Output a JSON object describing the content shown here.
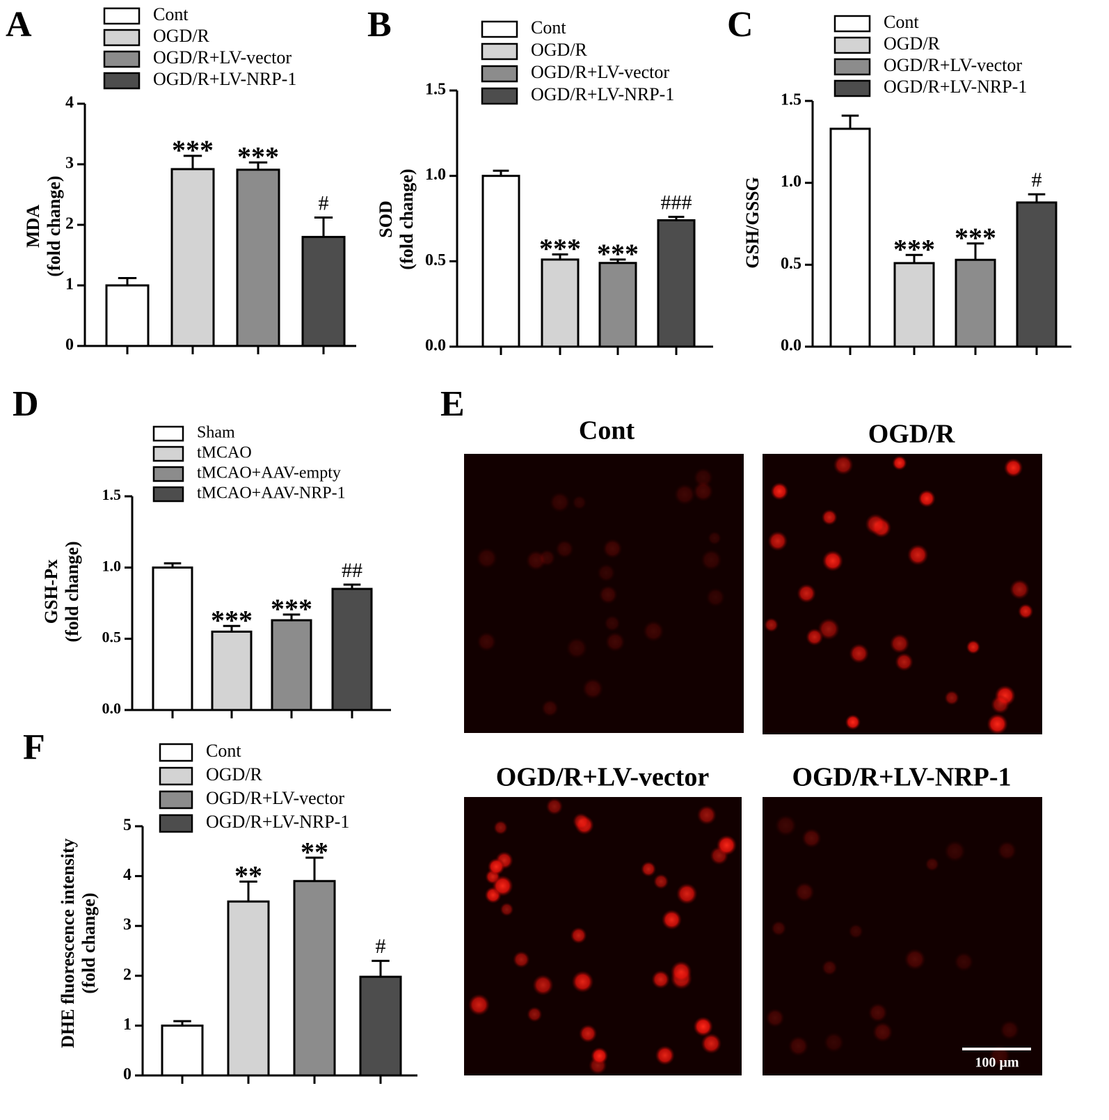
{
  "chart_data": [
    {
      "type": "bar",
      "panel_label": "A",
      "ylabel": [
        "MDA",
        "(fold change)"
      ],
      "categories": [
        "Cont",
        "OGD/R",
        "OGD/R+LV-vector",
        "OGD/R+LV-NRP-1"
      ],
      "values": [
        1.0,
        2.92,
        2.91,
        1.8
      ],
      "errors": [
        0.12,
        0.22,
        0.12,
        0.32
      ],
      "annotations": [
        null,
        "***",
        "***",
        "#"
      ],
      "colors": [
        "#ffffff",
        "#d3d3d3",
        "#8c8c8c",
        "#4d4d4d"
      ],
      "ylim": [
        0,
        4
      ],
      "yticks": [
        0,
        1,
        2,
        3,
        4
      ]
    },
    {
      "type": "bar",
      "panel_label": "B",
      "ylabel": [
        "SOD",
        "(fold change)"
      ],
      "categories": [
        "Cont",
        "OGD/R",
        "OGD/R+LV-vector",
        "OGD/R+LV-NRP-1"
      ],
      "values": [
        1.0,
        0.51,
        0.49,
        0.74
      ],
      "errors": [
        0.03,
        0.03,
        0.02,
        0.02
      ],
      "annotations": [
        null,
        "***",
        "***",
        "###"
      ],
      "colors": [
        "#ffffff",
        "#d3d3d3",
        "#8c8c8c",
        "#4d4d4d"
      ],
      "ylim": [
        0,
        1.5
      ],
      "yticks": [
        {
          "value": 0,
          "label": "0.0"
        },
        0.5,
        {
          "value": 1,
          "label": "1.0"
        },
        1.5
      ]
    },
    {
      "type": "bar",
      "panel_label": "C",
      "ylabel": [
        "GSH/GSSG"
      ],
      "categories": [
        "Cont",
        "OGD/R",
        "OGD/R+LV-vector",
        "OGD/R+LV-NRP-1"
      ],
      "values": [
        1.33,
        0.51,
        0.53,
        0.88
      ],
      "errors": [
        0.08,
        0.05,
        0.1,
        0.05
      ],
      "annotations": [
        null,
        "***",
        "***",
        "#"
      ],
      "colors": [
        "#ffffff",
        "#d3d3d3",
        "#8c8c8c",
        "#4d4d4d"
      ],
      "ylim": [
        0,
        1.5
      ],
      "yticks": [
        {
          "value": 0,
          "label": "0.0"
        },
        0.5,
        {
          "value": 1,
          "label": "1.0"
        },
        1.5
      ]
    },
    {
      "type": "bar",
      "panel_label": "D",
      "ylabel": [
        "GSH-Px",
        "(fold change)"
      ],
      "categories": [
        "Sham",
        "tMCAO",
        "tMCAO+AAV-empty",
        "tMCAO+AAV-NRP-1"
      ],
      "values": [
        1.0,
        0.55,
        0.63,
        0.85
      ],
      "errors": [
        0.03,
        0.04,
        0.04,
        0.03
      ],
      "annotations": [
        null,
        "***",
        "***",
        "##"
      ],
      "colors": [
        "#ffffff",
        "#d3d3d3",
        "#8c8c8c",
        "#4d4d4d"
      ],
      "ylim": [
        0,
        1.5
      ],
      "yticks": [
        {
          "value": 0,
          "label": "0.0"
        },
        0.5,
        {
          "value": 1,
          "label": "1.0"
        },
        1.5
      ]
    },
    {
      "type": "bar",
      "panel_label": "F",
      "ylabel": [
        "DHE fluorescence intensity",
        "(fold change)"
      ],
      "categories": [
        "Cont",
        "OGD/R",
        "OGD/R+LV-vector",
        "OGD/R+LV-NRP-1"
      ],
      "values": [
        1.0,
        3.49,
        3.9,
        1.98
      ],
      "errors": [
        0.09,
        0.4,
        0.47,
        0.32
      ],
      "annotations": [
        null,
        "**",
        "**",
        "#"
      ],
      "colors": [
        "#ffffff",
        "#d3d3d3",
        "#8c8c8c",
        "#4d4d4d"
      ],
      "ylim": [
        0,
        5
      ],
      "yticks": [
        0,
        1,
        2,
        3,
        4,
        5
      ]
    }
  ],
  "image_panel": {
    "panel_label": "E",
    "images": [
      {
        "title": "Cont"
      },
      {
        "title": "OGD/R"
      },
      {
        "title": "OGD/R+LV-vector"
      },
      {
        "title": "OGD/R+LV-NRP-1"
      }
    ],
    "scale_bar": "100 µm"
  }
}
